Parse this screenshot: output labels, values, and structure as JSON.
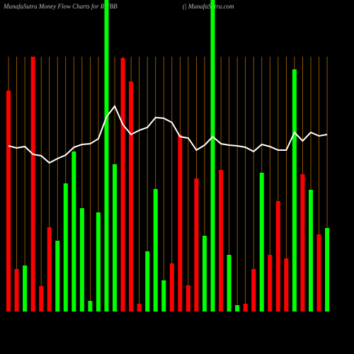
{
  "chart_data": {
    "type": "bar",
    "title": "MunafaSutra  Money Flow  Charts for RWBB",
    "subtitle": "(| MunafaSutra.com",
    "ylim": [
      0,
      440
    ],
    "bars": {
      "values": [
        312,
        60,
        65,
        360,
        36,
        119,
        100,
        181,
        226,
        146,
        15,
        140,
        440,
        208,
        358,
        325,
        11,
        85,
        173,
        44,
        68,
        250,
        37,
        188,
        107,
        440,
        200,
        80,
        9,
        11,
        60,
        196,
        80,
        156,
        75,
        342,
        194,
        172,
        109,
        118
      ],
      "colors": [
        "#ff0000",
        "#ff0000",
        "#00ff00",
        "#ff0000",
        "#ff0000",
        "#ff0000",
        "#00ff00",
        "#00ff00",
        "#00ff00",
        "#00ff00",
        "#00ff00",
        "#00ff00",
        "#00ff00",
        "#00ff00",
        "#ff0000",
        "#ff0000",
        "#ff0000",
        "#00ff00",
        "#00ff00",
        "#00ff00",
        "#ff0000",
        "#ff0000",
        "#ff0000",
        "#ff0000",
        "#00ff00",
        "#00ff00",
        "#ff0000",
        "#00ff00",
        "#00ff00",
        "#ff0000",
        "#ff0000",
        "#00ff00",
        "#ff0000",
        "#ff0000",
        "#ff0000",
        "#00ff00",
        "#ff0000",
        "#00ff00",
        "#ff0000",
        "#00ff00"
      ]
    },
    "line": {
      "color": "#ffffff",
      "values": [
        234,
        231,
        233,
        222,
        220,
        210,
        216,
        221,
        232,
        236,
        237,
        244,
        275,
        290,
        264,
        250,
        256,
        260,
        274,
        273,
        267,
        247,
        245,
        228,
        235,
        247,
        237,
        235,
        234,
        232,
        226,
        236,
        233,
        228,
        228,
        253,
        241,
        253,
        248,
        250
      ]
    }
  }
}
